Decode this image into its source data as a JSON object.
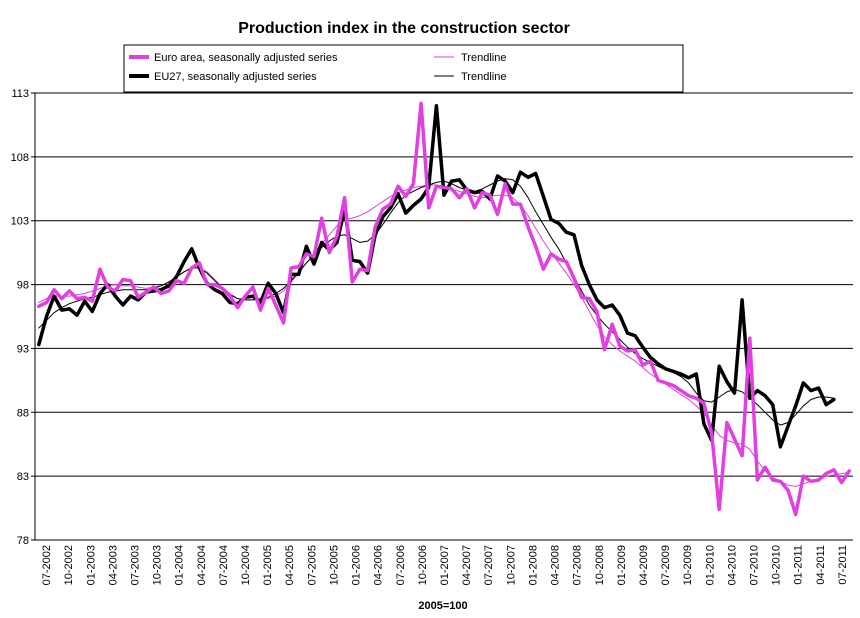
{
  "chart_data": {
    "type": "line",
    "title": "Production index in the construction sector",
    "xlabel": "",
    "ylabel": "",
    "note": "2005=100",
    "ylim": [
      78,
      113
    ],
    "yticks": [
      78,
      83,
      88,
      93,
      98,
      103,
      108,
      113
    ],
    "grid": true,
    "legend_position": "top",
    "x_tick_labels": [
      "07-2002",
      "10-2002",
      "01-2003",
      "04-2003",
      "07-2003",
      "10-2003",
      "01-2004",
      "04-2004",
      "07-2004",
      "10-2004",
      "01-2005",
      "04-2005",
      "07-2005",
      "10-2005",
      "01-2006",
      "04-2006",
      "07-2006",
      "10-2006",
      "01-2007",
      "04-2007",
      "07-2007",
      "10-2007",
      "01-2008",
      "04-2008",
      "07-2008",
      "10-2008",
      "01-2009",
      "04-2009",
      "07-2009",
      "10-2009",
      "01-2010",
      "04-2010",
      "07-2010",
      "10-2010",
      "01-2011",
      "04-2011",
      "07-2011"
    ],
    "legend": [
      {
        "name": "Euro area, seasonally adjusted series",
        "color": "#e040e0",
        "style": "thick"
      },
      {
        "name": "Trendline",
        "color": "#e040e0",
        "style": "thin"
      },
      {
        "name": "EU27, seasonally adjusted series",
        "color": "#000000",
        "style": "thick"
      },
      {
        "name": "Trendline",
        "color": "#000000",
        "style": "thin"
      }
    ],
    "series": [
      {
        "name": "Euro area, seasonally adjusted series",
        "color": "#e040e0",
        "style": "thick",
        "values": [
          96.3,
          96.6,
          97.6,
          96.9,
          97.5,
          96.9,
          97.0,
          96.7,
          99.2,
          97.8,
          97.5,
          98.4,
          98.3,
          97.0,
          97.4,
          97.8,
          97.3,
          97.5,
          98.3,
          98.1,
          99.3,
          99.7,
          98.0,
          98.0,
          97.7,
          97.1,
          96.2,
          97.1,
          97.8,
          96.0,
          97.7,
          96.4,
          95.0,
          99.3,
          99.4,
          100.4,
          100.2,
          103.2,
          100.5,
          101.8,
          104.8,
          98.2,
          99.2,
          99.1,
          102.5,
          103.9,
          104.3,
          105.7,
          104.9,
          105.9,
          112.2,
          104.0,
          105.7,
          105.6,
          105.5,
          104.8,
          105.5,
          104.0,
          105.2,
          105.0,
          103.5,
          105.9,
          104.3,
          104.3,
          102.5,
          101.0,
          99.2,
          100.4,
          100.0,
          99.8,
          98.5,
          97.0,
          96.9,
          95.9,
          92.9,
          94.9,
          93.2,
          92.8,
          92.9,
          91.7,
          92.0,
          90.5,
          90.3,
          90.1,
          89.7,
          89.3,
          89.1,
          88.7,
          86.4,
          80.4,
          87.2,
          85.9,
          84.6,
          93.8,
          82.7,
          83.7,
          82.7,
          82.6,
          81.9,
          80.0,
          83.0,
          82.6,
          82.7,
          83.2,
          83.5,
          82.5,
          83.4
        ]
      },
      {
        "name": "Trendline",
        "color": "#e040e0",
        "style": "thin",
        "values": [
          96.6,
          96.9,
          97.1,
          97.1,
          97.1,
          97.2,
          97.3,
          97.5,
          97.7,
          97.9,
          98.0,
          97.9,
          97.9,
          97.8,
          97.7,
          97.8,
          97.9,
          98.2,
          98.6,
          99.0,
          99.3,
          99.3,
          99.0,
          98.4,
          97.8,
          97.3,
          96.9,
          96.8,
          96.8,
          96.8,
          96.9,
          97.1,
          97.5,
          98.2,
          98.9,
          99.7,
          100.4,
          101.2,
          101.9,
          102.6,
          103.1,
          103.2,
          103.4,
          103.7,
          104.1,
          104.5,
          104.9,
          105.2,
          105.4,
          105.6,
          105.7,
          105.8,
          105.8,
          105.7,
          105.5,
          105.3,
          105.1,
          104.9,
          104.8,
          104.9,
          105.0,
          105.0,
          104.8,
          104.2,
          103.4,
          102.4,
          101.4,
          100.5,
          99.7,
          98.9,
          98.0,
          97.0,
          95.9,
          94.8,
          93.9,
          93.3,
          92.8,
          92.4,
          92.0,
          91.5,
          91.0,
          90.6,
          90.2,
          89.8,
          89.4,
          89.0,
          88.5,
          87.9,
          87.0,
          86.2,
          85.8,
          85.6,
          85.5,
          85.1,
          84.2,
          83.4,
          82.9,
          82.6,
          82.3,
          82.2,
          82.4,
          82.6,
          82.8,
          83.0,
          83.1,
          83.2,
          83.3
        ]
      },
      {
        "name": "EU27, seasonally adjusted series",
        "color": "#000000",
        "style": "thick",
        "values": [
          93.3,
          95.5,
          97.1,
          96.0,
          96.1,
          95.6,
          96.7,
          95.9,
          97.3,
          98.0,
          97.1,
          96.4,
          97.1,
          96.8,
          97.4,
          97.5,
          97.6,
          97.9,
          98.6,
          99.8,
          100.8,
          99.3,
          98.1,
          97.6,
          97.3,
          96.6,
          96.5,
          97.0,
          97.1,
          96.6,
          98.1,
          97.3,
          95.8,
          98.8,
          98.8,
          101.0,
          99.6,
          101.3,
          100.7,
          101.3,
          103.9,
          99.9,
          99.8,
          98.9,
          101.9,
          103.3,
          104.0,
          105.1,
          103.6,
          104.2,
          104.7,
          105.6,
          112.0,
          105.0,
          106.1,
          106.2,
          105.4,
          105.2,
          105.3,
          104.7,
          106.5,
          106.1,
          105.2,
          106.8,
          106.4,
          106.7,
          104.9,
          103.1,
          102.8,
          102.1,
          101.9,
          99.5,
          98.0,
          96.8,
          96.2,
          96.4,
          95.6,
          94.2,
          94.0,
          93.1,
          92.3,
          91.8,
          91.4,
          91.2,
          91.0,
          90.7,
          91.0,
          87.1,
          85.8,
          91.6,
          90.4,
          89.5,
          96.8,
          89.1,
          89.7,
          89.3,
          88.6,
          85.3,
          86.9,
          88.5,
          90.3,
          89.7,
          89.9,
          88.6,
          89.0
        ]
      },
      {
        "name": "Trendline",
        "color": "#000000",
        "style": "thin",
        "values": [
          94.6,
          95.2,
          95.8,
          96.2,
          96.5,
          96.7,
          96.9,
          97.0,
          97.2,
          97.4,
          97.5,
          97.6,
          97.6,
          97.6,
          97.6,
          97.7,
          97.9,
          98.2,
          98.6,
          99.0,
          99.3,
          99.3,
          98.9,
          98.3,
          97.7,
          97.2,
          96.9,
          96.8,
          96.8,
          96.9,
          97.0,
          97.3,
          97.7,
          98.3,
          99.0,
          99.7,
          100.3,
          100.9,
          101.4,
          101.8,
          101.9,
          101.6,
          101.3,
          101.4,
          101.9,
          102.7,
          103.6,
          104.4,
          105.0,
          105.3,
          105.6,
          105.8,
          106.0,
          106.1,
          105.9,
          105.6,
          105.4,
          105.3,
          105.5,
          105.8,
          106.1,
          106.3,
          106.2,
          105.7,
          104.8,
          103.7,
          102.7,
          101.7,
          100.8,
          99.7,
          98.6,
          97.5,
          96.4,
          95.6,
          94.9,
          94.3,
          93.7,
          93.1,
          92.6,
          92.2,
          91.9,
          91.6,
          91.3,
          91.1,
          90.8,
          90.3,
          89.5,
          88.9,
          88.8,
          89.2,
          89.6,
          89.8,
          89.6,
          89.1,
          88.6,
          88.0,
          87.4,
          87.0,
          87.2,
          87.8,
          88.5,
          89.0,
          89.2,
          89.2,
          89.1
        ]
      }
    ]
  }
}
